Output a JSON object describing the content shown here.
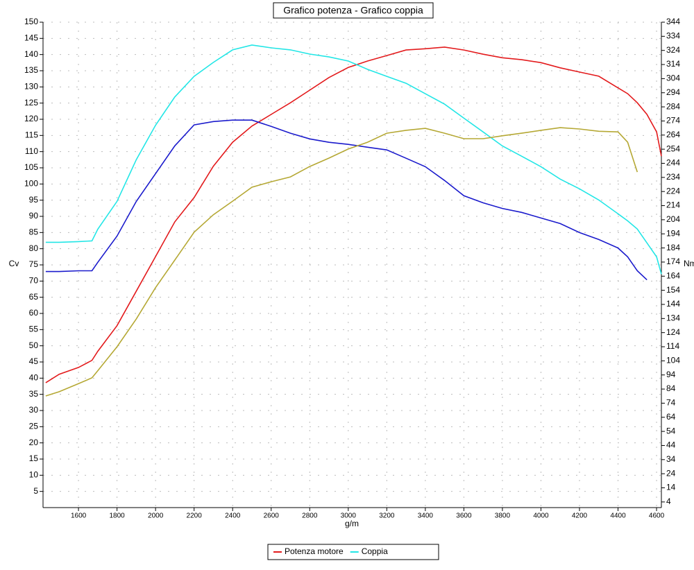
{
  "chart_data": {
    "type": "line",
    "title": "Grafico potenza - Grafico coppia",
    "xlabel": "g/m",
    "ylabel": "Cv",
    "y2label": "Nm",
    "x": [
      1430,
      1500,
      1600,
      1670,
      1700,
      1800,
      1900,
      2000,
      2100,
      2200,
      2300,
      2400,
      2500,
      2600,
      2700,
      2800,
      2900,
      3000,
      3100,
      3200,
      3300,
      3400,
      3500,
      3600,
      3700,
      3800,
      3900,
      4000,
      4100,
      4200,
      4300,
      4400,
      4450,
      4500,
      4550,
      4600,
      4625
    ],
    "xlim": [
      1416,
      4625
    ],
    "xticks": [
      1600,
      1800,
      2000,
      2200,
      2400,
      2600,
      2800,
      3000,
      3200,
      3400,
      3600,
      3800,
      4000,
      4200,
      4400,
      4600
    ],
    "ylim": [
      0,
      150
    ],
    "yticks": [
      5,
      10,
      15,
      20,
      25,
      30,
      35,
      40,
      45,
      50,
      55,
      60,
      65,
      70,
      75,
      80,
      85,
      90,
      95,
      100,
      105,
      110,
      115,
      120,
      125,
      130,
      135,
      140,
      145,
      150
    ],
    "y2lim": [
      0,
      344
    ],
    "y2ticks": [
      4,
      14,
      24,
      34,
      44,
      54,
      64,
      74,
      84,
      94,
      104,
      114,
      124,
      134,
      144,
      154,
      164,
      174,
      184,
      194,
      204,
      214,
      224,
      234,
      244,
      254,
      264,
      274,
      284,
      294,
      304,
      314,
      324,
      334,
      344
    ],
    "grid": true,
    "series": [
      {
        "name": "Potenza motore",
        "color": "#e31a1c",
        "values": [
          38.6,
          41.2,
          43.3,
          45.5,
          48.3,
          56.2,
          66.9,
          77.6,
          88.3,
          95.8,
          105.5,
          112.9,
          117.9,
          121.5,
          125.1,
          129,
          132.9,
          136,
          138,
          139.7,
          141.4,
          141.8,
          142.3,
          141.4,
          140.1,
          139,
          138.4,
          137.5,
          135.9,
          134.6,
          133.3,
          129.7,
          127.9,
          125.1,
          121.5,
          116.1,
          108.6
        ]
      },
      {
        "name": "Coppia",
        "color": "#22e6e6",
        "axis": "y2",
        "values": [
          188,
          188,
          188.5,
          189,
          197.3,
          217,
          246.6,
          271,
          291,
          305.6,
          315.5,
          324.4,
          327.8,
          325.8,
          324.4,
          321.4,
          319.4,
          316.5,
          310.6,
          305.6,
          300.7,
          293.3,
          285.9,
          276,
          266.2,
          256.3,
          249,
          241.6,
          232.8,
          225.9,
          218,
          208.2,
          203.2,
          197.4,
          187.6,
          177.7,
          165.4
        ]
      },
      {
        "color": "#1a1acc",
        "axis": "y2",
        "values": [
          167.3,
          167.3,
          167.8,
          167.8,
          173.8,
          192.4,
          217,
          236.7,
          256.4,
          271.2,
          273.6,
          274.6,
          274.6,
          270.2,
          265.3,
          261.3,
          258.9,
          257.4,
          255.4,
          253.5,
          247.6,
          241.6,
          231.8,
          221,
          216,
          212,
          209.2,
          205.2,
          201.3,
          194.9,
          190,
          184,
          177.7,
          167.8,
          161.4,
          null,
          null
        ]
      },
      {
        "color": "#b5a834",
        "values": [
          34.5,
          35.8,
          38.3,
          40.1,
          42.3,
          49.7,
          58.3,
          68,
          76.5,
          85.1,
          90.5,
          94.7,
          99,
          100.7,
          102.2,
          105.4,
          108,
          110.8,
          112.9,
          115.7,
          116.6,
          117.2,
          115.7,
          114,
          114,
          114.9,
          115.7,
          116.6,
          117.4,
          117,
          116.3,
          116.1,
          112.9,
          103.7,
          null,
          null,
          null
        ]
      }
    ]
  }
}
